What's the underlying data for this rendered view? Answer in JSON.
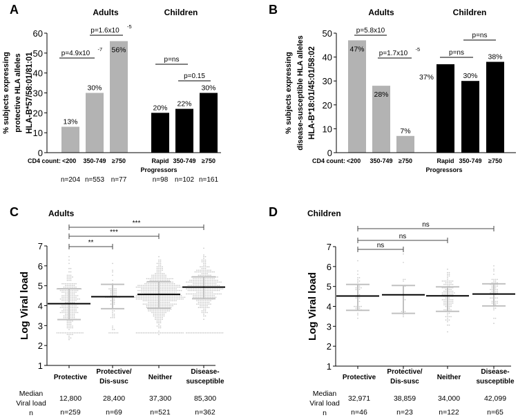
{
  "chart_data": [
    {
      "panel": "A",
      "type": "bar",
      "ylabel": [
        "% subjects expressing",
        "protective HLA alleles",
        "HLA-B*57/58:01/81:01"
      ],
      "ylim": [
        0,
        60
      ],
      "yticks": [
        "0",
        "10",
        "20",
        "30",
        "40",
        "50",
        "60"
      ],
      "group_titles": [
        "Adults",
        "Children"
      ],
      "xlabel_prefix": "CD4 count:",
      "bars": [
        {
          "group": "Adults",
          "category": "<200",
          "value": 13,
          "label": "13%",
          "n": "n=204",
          "color": "#b3b3b3"
        },
        {
          "group": "Adults",
          "category": "350-749",
          "value": 30,
          "label": "30%",
          "n": "n=553",
          "color": "#b3b3b3"
        },
        {
          "group": "Adults",
          "category": "≥750",
          "value": 56,
          "label": "56%",
          "n": "n=77",
          "color": "#b3b3b3"
        },
        {
          "group": "Children",
          "category": "Rapid",
          "category2": "Progressors",
          "value": 20,
          "label": "20%",
          "n": "n=98",
          "color": "#000000"
        },
        {
          "group": "Children",
          "category": "350-749",
          "value": 22,
          "label": "22%",
          "n": "n=102",
          "color": "#000000"
        },
        {
          "group": "Children",
          "category": "≥750",
          "value": 30,
          "label": "30%",
          "n": "n=161",
          "color": "#000000"
        }
      ],
      "comparisons": [
        {
          "between": [
            "<200",
            "350-749"
          ],
          "label": "p=4.9x10",
          "exp": "-7"
        },
        {
          "between": [
            "350-749",
            "≥750"
          ],
          "label": "p=1.6x10",
          "exp": "-5"
        },
        {
          "between": [
            "Rapid Progressors",
            "350-749"
          ],
          "label": "p=ns",
          "exp": ""
        },
        {
          "between": [
            "350-749",
            "≥750"
          ],
          "label": "p=0.15",
          "exp": ""
        }
      ]
    },
    {
      "panel": "B",
      "type": "bar",
      "ylabel": [
        "% subjects expressing",
        "disease-susceptible HLA alleles",
        "HLA-B*18:01/45:01/58:02"
      ],
      "ylim": [
        0,
        50
      ],
      "yticks": [
        "0",
        "10",
        "20",
        "30",
        "40",
        "50"
      ],
      "group_titles": [
        "Adults",
        "Children"
      ],
      "xlabel_prefix": "CD4 count:",
      "bars": [
        {
          "group": "Adults",
          "category": "<200",
          "value": 47,
          "label": "47%",
          "color": "#b3b3b3"
        },
        {
          "group": "Adults",
          "category": "350-749",
          "value": 28,
          "label": "28%",
          "color": "#b3b3b3"
        },
        {
          "group": "Adults",
          "category": "≥750",
          "value": 7,
          "label": "7%",
          "color": "#b3b3b3"
        },
        {
          "group": "Children",
          "category": "Rapid",
          "category2": "Progressors",
          "value": 37,
          "label": "37%",
          "color": "#000000"
        },
        {
          "group": "Children",
          "category": "350-749",
          "value": 30,
          "label": "30%",
          "color": "#000000"
        },
        {
          "group": "Children",
          "category": "≥750",
          "value": 38,
          "label": "38%",
          "color": "#000000"
        }
      ],
      "comparisons": [
        {
          "between": [
            "<200",
            "350-749"
          ],
          "label": "p=5.8x10",
          "exp": ""
        },
        {
          "between": [
            "350-749",
            "≥750"
          ],
          "label": "p=1.7x10",
          "exp": "-5"
        },
        {
          "between": [
            "Rapid Progressors",
            "350-749"
          ],
          "label": "p=ns",
          "exp": ""
        },
        {
          "between": [
            "350-749",
            "≥750"
          ],
          "label": "p=ns",
          "exp": ""
        }
      ]
    },
    {
      "panel": "C",
      "type": "scatter",
      "title": "Adults",
      "ylabel": "Log Viral load",
      "ylim": [
        1,
        7
      ],
      "yticks": [
        "1",
        "2",
        "3",
        "4",
        "5",
        "6",
        "7"
      ],
      "row_labels": {
        "median": [
          "Median",
          "Viral load"
        ],
        "n": "n"
      },
      "groups": [
        {
          "label": [
            "Protective"
          ],
          "center": 4.1,
          "err_low": 3.3,
          "err_high": 4.85,
          "median_viral_load": "12,800",
          "n_label": "n=259",
          "n": 259
        },
        {
          "label": [
            "Protective/",
            "Dis-susc"
          ],
          "center": 4.45,
          "err_low": 3.85,
          "err_high": 5.07,
          "median_viral_load": "28,400",
          "n_label": "n=69",
          "n": 69
        },
        {
          "label": [
            "Neither"
          ],
          "center": 4.57,
          "err_low": 3.87,
          "err_high": 5.2,
          "median_viral_load": "37,300",
          "n_label": "n=521",
          "n": 521
        },
        {
          "label": [
            "Disease-",
            "susceptible"
          ],
          "center": 4.93,
          "err_low": 4.35,
          "err_high": 5.45,
          "median_viral_load": "85,300",
          "n_label": "n=362",
          "n": 362
        }
      ],
      "comparisons": [
        {
          "between": [
            0,
            1
          ],
          "label": "**"
        },
        {
          "between": [
            0,
            2
          ],
          "label": "***"
        },
        {
          "between": [
            0,
            3
          ],
          "label": "***"
        }
      ]
    },
    {
      "panel": "D",
      "type": "scatter",
      "title": "Children",
      "ylabel": "Log Viral load",
      "ylim": [
        1,
        7
      ],
      "yticks": [
        "1",
        "2",
        "3",
        "4",
        "5",
        "6",
        "7"
      ],
      "row_labels": {
        "median": [
          "Median",
          "Viral load"
        ],
        "n": "n"
      },
      "groups": [
        {
          "label": [
            "Protective"
          ],
          "center": 4.52,
          "err_low": 3.8,
          "err_high": 5.1,
          "median_viral_load": "32,971",
          "n_label": "n=46",
          "n": 46
        },
        {
          "label": [
            "Protective/",
            "Dis-susc"
          ],
          "center": 4.58,
          "err_low": 3.65,
          "err_high": 5.05,
          "median_viral_load": "38,859",
          "n_label": "n=23",
          "n": 23
        },
        {
          "label": [
            "Neither"
          ],
          "center": 4.53,
          "err_low": 3.75,
          "err_high": 4.98,
          "median_viral_load": "34,000",
          "n_label": "n=122",
          "n": 122
        },
        {
          "label": [
            "Disease-",
            "susceptible"
          ],
          "center": 4.62,
          "err_low": 4.02,
          "err_high": 5.13,
          "median_viral_load": "42,099",
          "n_label": "n=65",
          "n": 65
        }
      ],
      "comparisons": [
        {
          "between": [
            0,
            1
          ],
          "label": "ns"
        },
        {
          "between": [
            0,
            2
          ],
          "label": "ns"
        },
        {
          "between": [
            0,
            3
          ],
          "label": "ns"
        }
      ]
    }
  ],
  "panel_labels": [
    "A",
    "B",
    "C",
    "D"
  ]
}
